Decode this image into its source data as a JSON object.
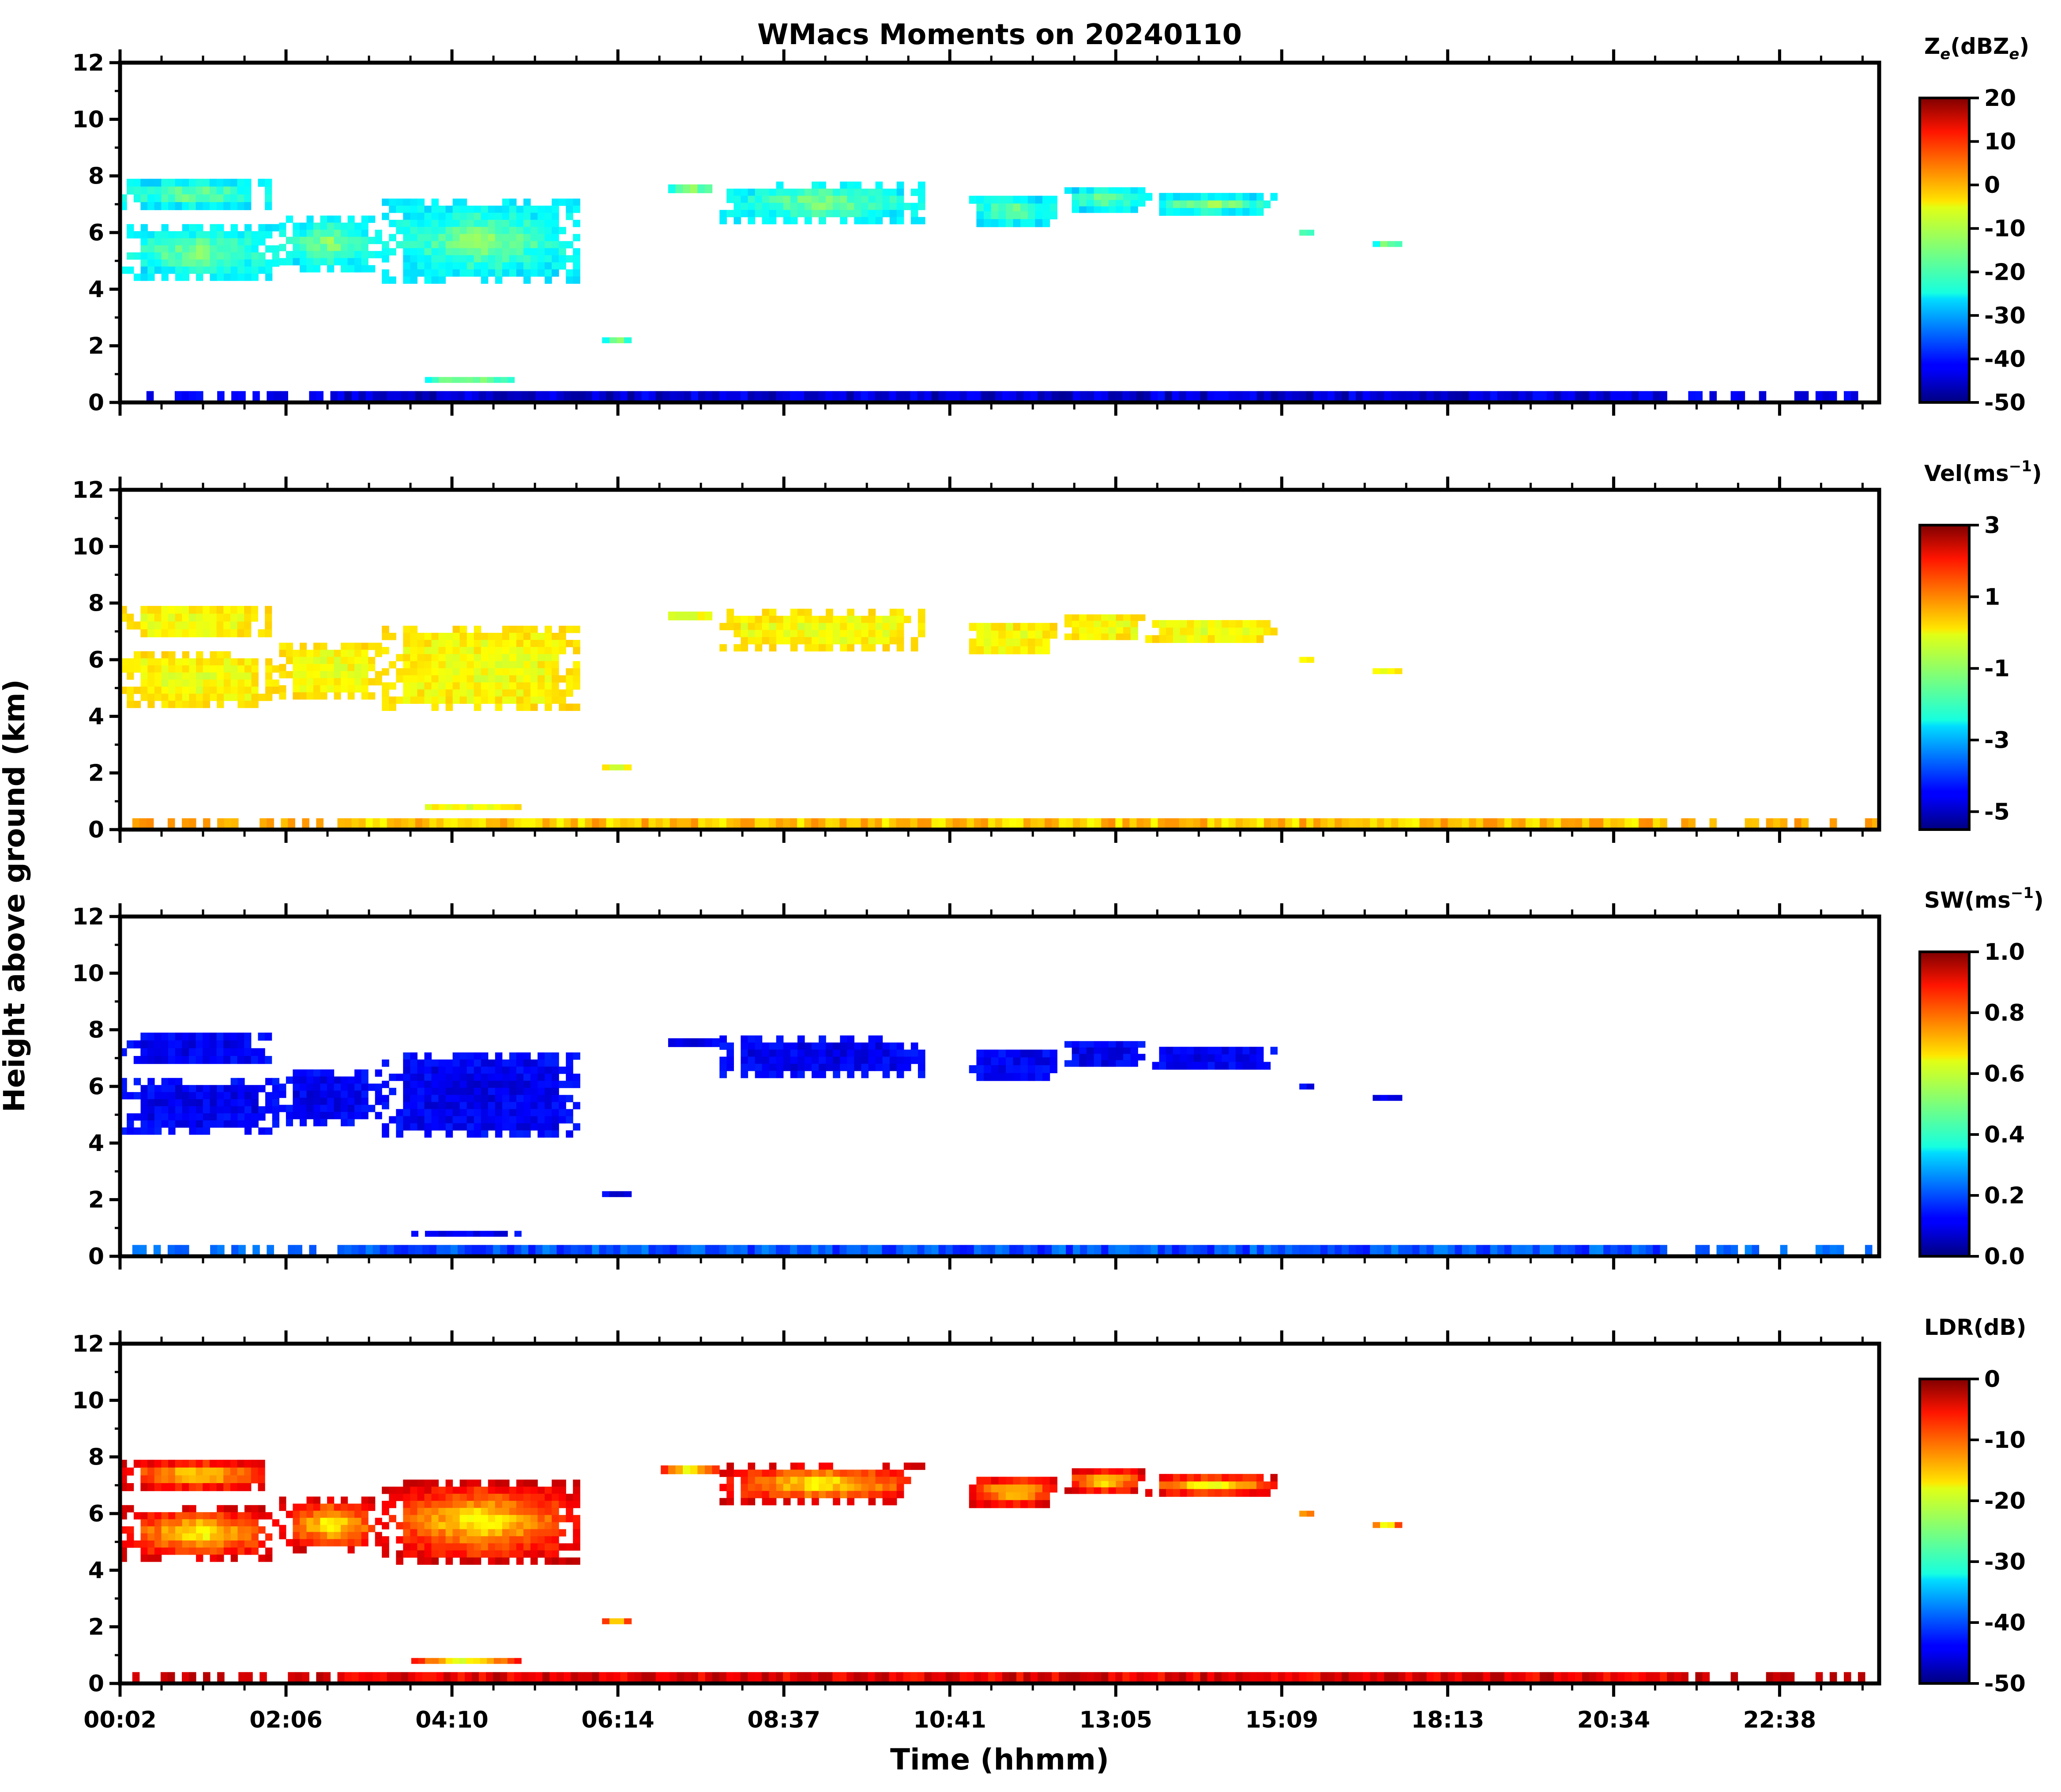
{
  "chart_data": {
    "type": "heatmap",
    "title": "WMacs Moments on 20240110",
    "xlabel": "Time (hhmm)",
    "ylabel": "Height above ground (km)",
    "x_tick_labels": [
      "00:02",
      "02:06",
      "04:10",
      "06:14",
      "08:37",
      "10:41",
      "13:05",
      "15:09",
      "18:13",
      "20:34",
      "22:38"
    ],
    "x_range_hours": [
      0.033,
      24.0
    ],
    "y_range_km": [
      0,
      12
    ],
    "y_ticks": [
      0,
      2,
      4,
      6,
      8,
      10,
      12
    ],
    "colormap": "jet",
    "panels": [
      {
        "variable": "Ze",
        "colorbar_label": "Ze(dBZe)",
        "label_main": "Z",
        "label_sub1": "e",
        "label_mid": "(dBZ",
        "label_sub2": "e",
        "label_end": ")",
        "range": [
          -50,
          20
        ],
        "colorbar_ticks": [
          "20",
          "10",
          "0",
          "-10",
          "-20",
          "-30",
          "-40",
          "-50"
        ],
        "cloud_level": 0.33,
        "cloud_core_level": 0.55,
        "ground_level": 0.08
      },
      {
        "variable": "Vel",
        "colorbar_label": "Vel(ms-1)",
        "label_main": "Vel(ms",
        "label_sup": "−1",
        "label_end": ")",
        "range": [
          -5.5,
          3
        ],
        "colorbar_ticks": [
          "3",
          "1",
          "-1",
          "-3",
          "-5"
        ],
        "cloud_level": 0.64,
        "cloud_core_level": 0.6,
        "ground_level": 0.68
      },
      {
        "variable": "SW",
        "colorbar_label": "SW(ms-1)",
        "label_main": "SW(ms",
        "label_sup": "−1",
        "label_end": ")",
        "range": [
          0,
          1
        ],
        "colorbar_ticks": [
          "1.0",
          "0.8",
          "0.6",
          "0.4",
          "0.2",
          "0.0"
        ],
        "cloud_level": 0.12,
        "cloud_core_level": 0.1,
        "ground_level": 0.2
      },
      {
        "variable": "LDR",
        "colorbar_label": "LDR(dB)",
        "label_main": "LDR(dB)",
        "range": [
          -50,
          0
        ],
        "colorbar_ticks": [
          "0",
          "-10",
          "-20",
          "-30",
          "-40",
          "-50"
        ],
        "cloud_level": 0.92,
        "cloud_core_level": 0.55,
        "ground_level": 0.9
      }
    ],
    "echo_regions_hours_km": [
      {
        "t0": 0.03,
        "t1": 2.2,
        "z0": 4.3,
        "z1": 6.3
      },
      {
        "t0": 0.03,
        "t1": 2.1,
        "z0": 6.8,
        "z1": 7.9
      },
      {
        "t0": 2.2,
        "t1": 3.6,
        "z0": 4.6,
        "z1": 6.6
      },
      {
        "t0": 3.6,
        "t1": 6.3,
        "z0": 4.2,
        "z1": 7.2
      },
      {
        "t0": 6.6,
        "t1": 7.0,
        "z0": 2.1,
        "z1": 2.3
      },
      {
        "t0": 4.0,
        "t1": 5.5,
        "z0": 0.7,
        "z1": 0.9
      },
      {
        "t0": 7.4,
        "t1": 8.2,
        "z0": 7.4,
        "z1": 7.7
      },
      {
        "t0": 8.2,
        "t1": 11.0,
        "z0": 6.3,
        "z1": 7.8
      },
      {
        "t0": 11.6,
        "t1": 12.8,
        "z0": 6.2,
        "z1": 7.3
      },
      {
        "t0": 12.9,
        "t1": 14.0,
        "z0": 6.7,
        "z1": 7.6
      },
      {
        "t0": 14.0,
        "t1": 15.8,
        "z0": 6.6,
        "z1": 7.4
      },
      {
        "t0": 16.1,
        "t1": 16.3,
        "z0": 5.9,
        "z1": 6.1
      },
      {
        "t0": 17.1,
        "t1": 17.5,
        "z0": 5.5,
        "z1": 5.7
      },
      {
        "t0": 0.2,
        "t1": 24.0,
        "z0": 0.05,
        "z1": 0.4
      }
    ]
  }
}
